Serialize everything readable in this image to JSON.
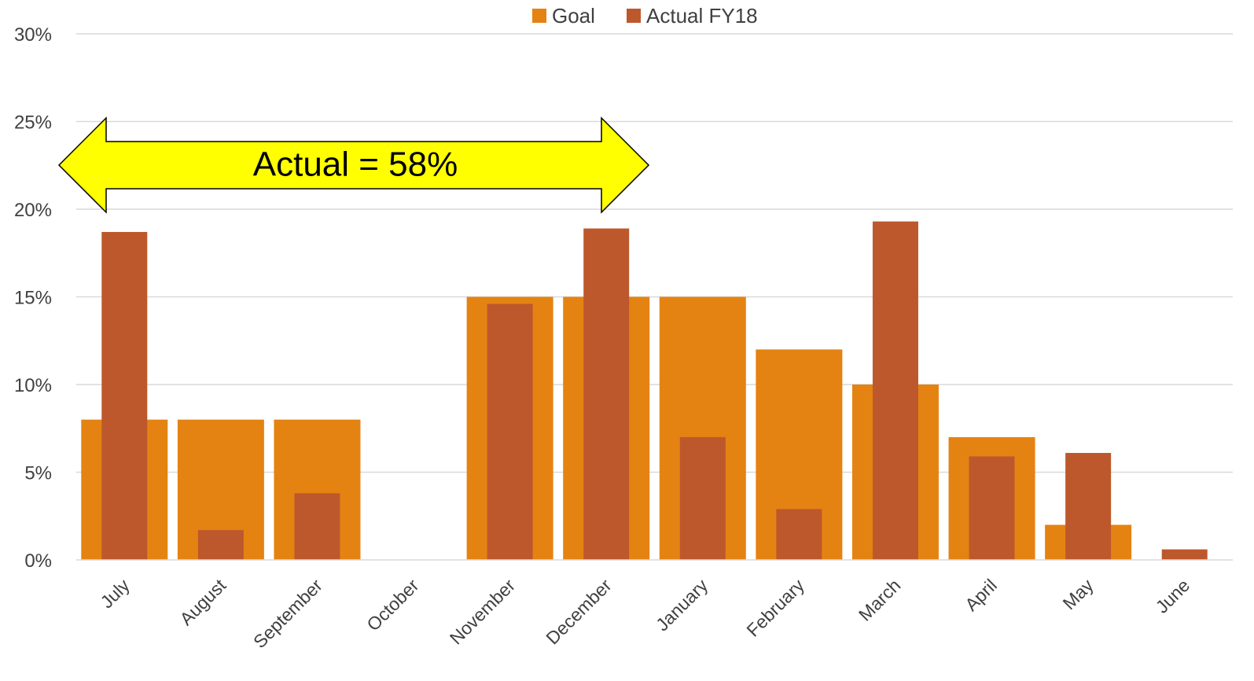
{
  "chart_data": {
    "type": "bar",
    "categories": [
      "July",
      "August",
      "September",
      "October",
      "November",
      "December",
      "January",
      "February",
      "March",
      "April",
      "May",
      "June"
    ],
    "series": [
      {
        "name": "Goal",
        "color": "#E48312",
        "values": [
          8,
          8,
          8,
          0,
          15,
          15,
          15,
          12,
          10,
          7,
          2,
          0
        ]
      },
      {
        "name": "Actual FY18",
        "color": "#BD582C",
        "values": [
          18.7,
          1.7,
          3.8,
          0,
          14.6,
          18.9,
          7.0,
          2.9,
          19.3,
          5.9,
          6.1,
          0.6
        ]
      }
    ],
    "ylim": [
      0,
      30
    ],
    "yticks": [
      0,
      5,
      10,
      15,
      20,
      25,
      30
    ],
    "ytick_labels": [
      "0%",
      "5%",
      "10%",
      "15%",
      "20%",
      "25%",
      "30%"
    ],
    "grid": true,
    "legend_position": "top-center",
    "annotation": {
      "text": "Actual = 58%",
      "shape": "double-headed-arrow",
      "fill_color": "#FFFF00",
      "span_categories": [
        "July",
        "December"
      ]
    }
  }
}
